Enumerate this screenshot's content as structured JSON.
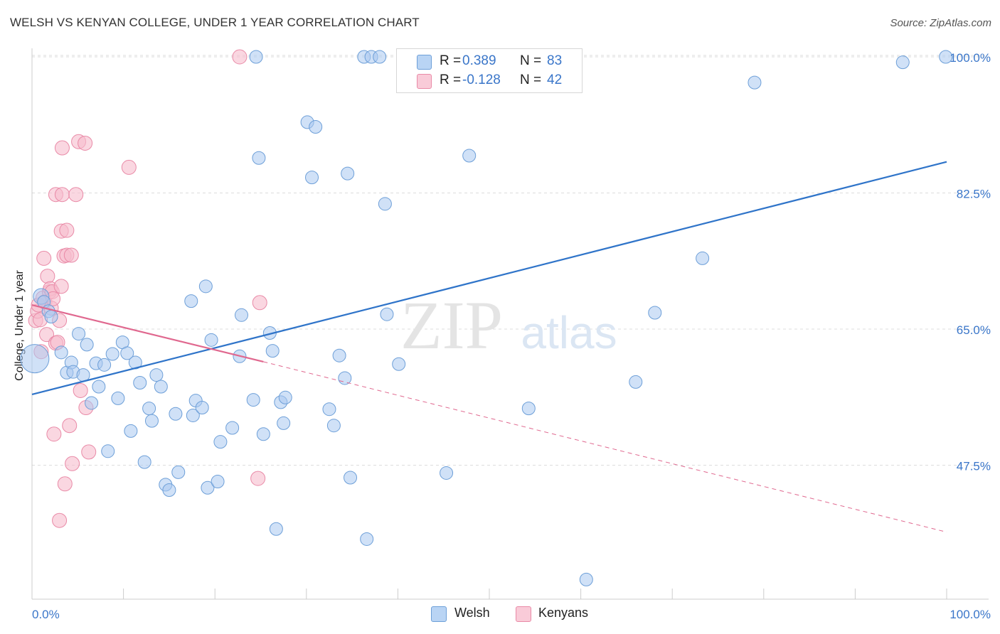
{
  "title": "WELSH VS KENYAN COLLEGE, UNDER 1 YEAR CORRELATION CHART",
  "source": "Source: ZipAtlas.com",
  "watermark": {
    "zip": "ZIP",
    "atlas": "atlas"
  },
  "colors": {
    "welsh_fill": "#a9c9f0",
    "welsh_stroke": "#6d9fd8",
    "welsh_line": "#2f74c9",
    "kenyan_fill": "#f7bccd",
    "kenyan_stroke": "#e98aa7",
    "kenyan_line": "#e0688f",
    "tick_label": "#3a76c9",
    "grid": "#dddddd"
  },
  "legend": {
    "rows": [
      {
        "r_label": "R =",
        "r_value": "0.389",
        "n_label": "N =",
        "n_value": "83",
        "series": "welsh"
      },
      {
        "r_label": "R =",
        "r_value": "-0.128",
        "n_label": "N =",
        "n_value": "42",
        "series": "kenyan"
      }
    ]
  },
  "bottom_legend": {
    "welsh": "Welsh",
    "kenyan": "Kenyans"
  },
  "chart_data": {
    "type": "scatter",
    "title": "WELSH VS KENYAN COLLEGE, UNDER 1 YEAR CORRELATION CHART",
    "xlabel": "",
    "ylabel": "College, Under 1 year",
    "xlim": [
      0,
      100
    ],
    "ylim": [
      31,
      102
    ],
    "x_tick_labels": [
      "0.0%",
      "100.0%"
    ],
    "y_ticks": [
      47.5,
      65.0,
      82.5,
      100.0
    ],
    "y_tick_labels": [
      "47.5%",
      "65.0%",
      "82.5%",
      "100.0%"
    ],
    "legend_position": "top-center",
    "series": [
      {
        "name": "Welsh",
        "r": 0.389,
        "n": 83,
        "trend": {
          "x0": 0,
          "y0": 56.6,
          "x1": 100,
          "y1": 86.5,
          "style": "solid"
        },
        "points": [
          [
            0.3,
            61.2,
            20
          ],
          [
            1.0,
            69.2,
            11
          ],
          [
            1.3,
            68.5,
            9
          ],
          [
            1.8,
            67.3,
            9
          ],
          [
            2.1,
            66.6,
            9
          ],
          [
            3.2,
            62.0,
            9
          ],
          [
            3.8,
            59.4,
            9
          ],
          [
            4.3,
            60.7,
            9
          ],
          [
            4.5,
            59.5,
            9
          ],
          [
            5.1,
            64.4,
            9
          ],
          [
            5.6,
            59.1,
            9
          ],
          [
            6.0,
            63.0,
            9
          ],
          [
            6.5,
            55.5,
            9
          ],
          [
            7.3,
            57.6,
            9
          ],
          [
            7.0,
            60.6,
            9
          ],
          [
            7.9,
            60.4,
            9
          ],
          [
            8.3,
            49.3,
            9
          ],
          [
            8.8,
            61.8,
            9
          ],
          [
            9.4,
            56.1,
            9
          ],
          [
            9.9,
            63.3,
            9
          ],
          [
            10.4,
            61.9,
            9
          ],
          [
            10.8,
            51.9,
            9
          ],
          [
            11.3,
            60.7,
            9
          ],
          [
            11.8,
            58.1,
            9
          ],
          [
            12.3,
            47.9,
            9
          ],
          [
            12.8,
            54.8,
            9
          ],
          [
            13.1,
            53.2,
            9
          ],
          [
            13.6,
            59.1,
            9
          ],
          [
            14.1,
            57.6,
            9
          ],
          [
            14.6,
            45.0,
            9
          ],
          [
            15.0,
            44.3,
            9
          ],
          [
            15.7,
            54.1,
            9
          ],
          [
            16.0,
            46.6,
            9
          ],
          [
            17.4,
            68.6,
            9
          ],
          [
            17.6,
            53.9,
            9
          ],
          [
            17.9,
            55.8,
            9
          ],
          [
            18.6,
            54.9,
            9
          ],
          [
            19.0,
            70.5,
            9
          ],
          [
            19.2,
            44.6,
            9
          ],
          [
            19.6,
            63.6,
            9
          ],
          [
            20.3,
            45.4,
            9
          ],
          [
            20.6,
            50.5,
            9
          ],
          [
            21.9,
            52.3,
            9
          ],
          [
            22.9,
            66.8,
            9
          ],
          [
            22.7,
            61.5,
            9
          ],
          [
            24.5,
            100.0,
            9
          ],
          [
            24.2,
            55.9,
            9
          ],
          [
            24.8,
            87.0,
            9
          ],
          [
            25.3,
            51.5,
            9
          ],
          [
            26.0,
            64.5,
            9
          ],
          [
            26.7,
            39.3,
            9
          ],
          [
            26.3,
            62.2,
            9
          ],
          [
            27.2,
            55.6,
            9
          ],
          [
            27.5,
            52.9,
            9
          ],
          [
            27.7,
            56.2,
            9
          ],
          [
            30.1,
            91.6,
            9
          ],
          [
            30.6,
            84.5,
            9
          ],
          [
            31.0,
            91.0,
            9
          ],
          [
            32.5,
            54.7,
            9
          ],
          [
            33.0,
            52.6,
            9
          ],
          [
            34.2,
            58.7,
            9
          ],
          [
            34.5,
            85.0,
            9
          ],
          [
            33.6,
            61.6,
            9
          ],
          [
            34.8,
            45.9,
            9
          ],
          [
            36.3,
            100.0,
            9
          ],
          [
            37.1,
            100.0,
            9
          ],
          [
            36.6,
            38.0,
            9
          ],
          [
            38.0,
            100.0,
            9
          ],
          [
            38.6,
            81.1,
            9
          ],
          [
            38.8,
            66.9,
            9
          ],
          [
            40.1,
            60.5,
            9
          ],
          [
            41.2,
            100.0,
            9
          ],
          [
            45.3,
            46.5,
            9
          ],
          [
            47.8,
            87.3,
            9
          ],
          [
            54.3,
            54.8,
            9
          ],
          [
            60.6,
            32.8,
            9
          ],
          [
            66.0,
            58.2,
            9
          ],
          [
            68.1,
            67.1,
            9
          ],
          [
            73.3,
            74.1,
            9
          ],
          [
            79.0,
            96.7,
            9
          ],
          [
            95.2,
            99.3,
            9
          ],
          [
            99.9,
            100.0,
            9
          ]
        ]
      },
      {
        "name": "Kenyans",
        "r": -0.128,
        "n": 42,
        "trend": {
          "x0": 0,
          "y0": 68.1,
          "x1": 25.3,
          "y1": 60.8,
          "style": "solid",
          "extended": {
            "x1": 100,
            "y1": 38.9,
            "style": "dashed"
          }
        },
        "points": [
          [
            0.4,
            66.1,
            10
          ],
          [
            0.6,
            67.3,
            10
          ],
          [
            0.7,
            68.1,
            10
          ],
          [
            0.9,
            66.2,
            10
          ],
          [
            1.0,
            62.1,
            10
          ],
          [
            1.2,
            69.0,
            10
          ],
          [
            1.3,
            74.1,
            10
          ],
          [
            1.4,
            68.5,
            10
          ],
          [
            1.6,
            64.3,
            10
          ],
          [
            1.7,
            71.8,
            10
          ],
          [
            1.9,
            69.8,
            10
          ],
          [
            2.0,
            70.2,
            10
          ],
          [
            2.1,
            67.7,
            10
          ],
          [
            2.2,
            69.8,
            10
          ],
          [
            2.3,
            68.9,
            10
          ],
          [
            2.4,
            51.5,
            10
          ],
          [
            2.6,
            63.2,
            10
          ],
          [
            2.6,
            82.3,
            10
          ],
          [
            2.8,
            63.3,
            10
          ],
          [
            3.0,
            40.4,
            10
          ],
          [
            3.0,
            66.1,
            10
          ],
          [
            3.2,
            70.5,
            10
          ],
          [
            3.2,
            77.6,
            10
          ],
          [
            3.3,
            88.3,
            10
          ],
          [
            3.3,
            82.3,
            10
          ],
          [
            3.5,
            74.4,
            10
          ],
          [
            3.6,
            45.1,
            10
          ],
          [
            3.8,
            74.5,
            10
          ],
          [
            3.8,
            77.7,
            10
          ],
          [
            4.1,
            52.6,
            10
          ],
          [
            4.3,
            74.5,
            10
          ],
          [
            4.4,
            47.7,
            10
          ],
          [
            4.8,
            82.3,
            10
          ],
          [
            5.1,
            89.1,
            10
          ],
          [
            5.3,
            57.1,
            10
          ],
          [
            5.8,
            88.9,
            10
          ],
          [
            5.9,
            54.9,
            10
          ],
          [
            6.2,
            49.2,
            10
          ],
          [
            10.6,
            85.8,
            10
          ],
          [
            22.7,
            100.0,
            10
          ],
          [
            24.7,
            45.8,
            10
          ],
          [
            24.9,
            68.4,
            10
          ]
        ]
      }
    ]
  }
}
